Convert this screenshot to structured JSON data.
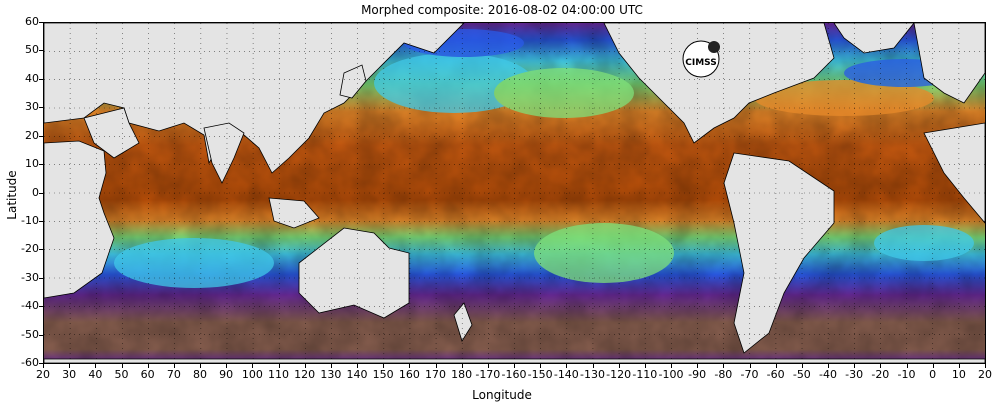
{
  "title": "Morphed composite: 2016-08-02 04:00:00 UTC",
  "xlabel": "Longitude",
  "ylabel": "Latitude",
  "yticks": [
    "60",
    "50",
    "40",
    "30",
    "20",
    "10",
    "0",
    "-10",
    "-20",
    "-30",
    "-40",
    "-50",
    "-60"
  ],
  "xticks": [
    "20",
    "30",
    "40",
    "50",
    "60",
    "70",
    "80",
    "90",
    "100",
    "110",
    "120",
    "130",
    "140",
    "150",
    "160",
    "170",
    "180",
    "-170",
    "-160",
    "-150",
    "-140",
    "-130",
    "-120",
    "-110",
    "-100",
    "-90",
    "-80",
    "-70",
    "-60",
    "-50",
    "-40",
    "-30",
    "-20",
    "-10",
    "0",
    "10",
    "20"
  ],
  "logo_text": "CIMSS",
  "colors": {
    "land": "#e4e4e4",
    "moist": "#c85a10",
    "orange": "#e88a2a",
    "green": "#7fe07a",
    "cyan": "#40c8e8",
    "blue": "#2a5ae8",
    "purple": "#6a2a9a",
    "brown": "#8a6050"
  }
}
